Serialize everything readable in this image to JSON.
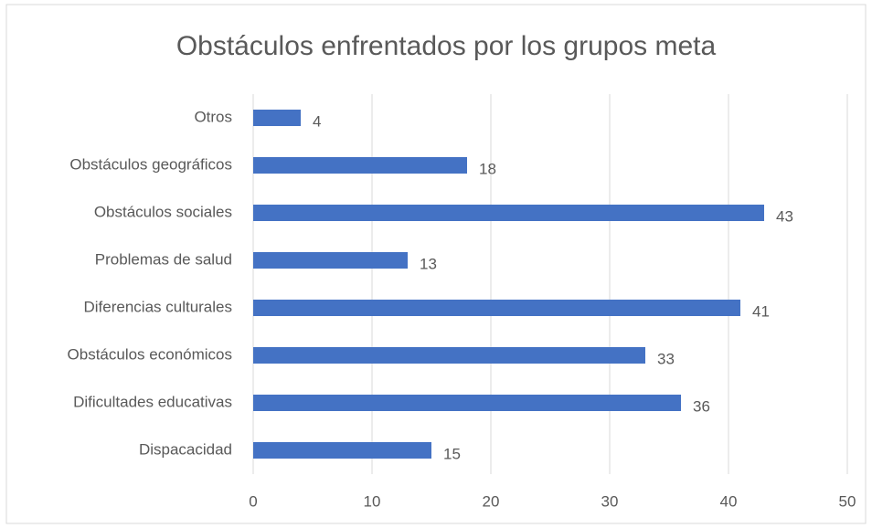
{
  "chart_data": {
    "type": "bar",
    "orientation": "horizontal",
    "title": "Obstáculos enfrentados por los grupos meta",
    "categories": [
      "Otros",
      "Obstáculos geográficos",
      "Obstáculos sociales",
      "Problemas de salud",
      "Diferencias culturales",
      "Obstáculos económicos",
      "Dificultades educativas",
      "Dispacacidad"
    ],
    "values": [
      4,
      18,
      43,
      13,
      41,
      33,
      36,
      15
    ],
    "color": "#4472c4",
    "xlim": [
      0,
      50
    ],
    "xticks": [
      0,
      10,
      20,
      30,
      40,
      50
    ],
    "grid": true
  }
}
